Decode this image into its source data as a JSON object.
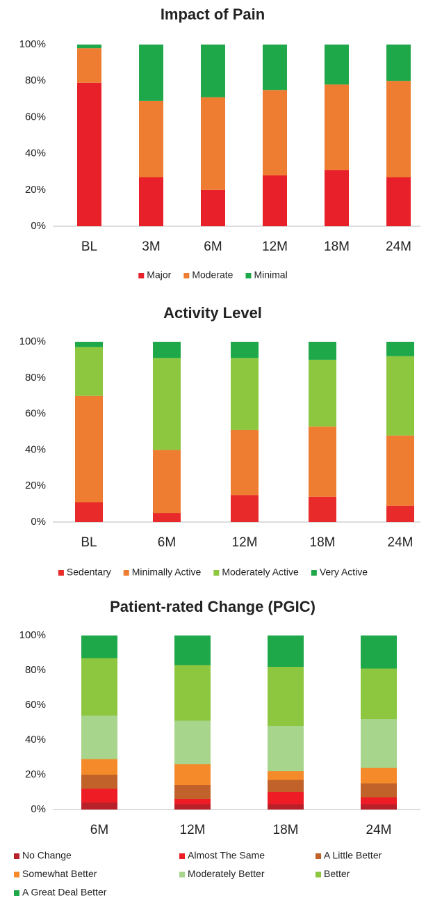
{
  "chart_data": [
    {
      "type": "bar",
      "stacked": true,
      "title": "Impact of Pain",
      "categories": [
        "BL",
        "3M",
        "6M",
        "12M",
        "18M",
        "24M"
      ],
      "series": [
        {
          "name": "Major",
          "color": "#e8202a",
          "values": [
            79,
            27,
            20,
            28,
            31,
            27
          ]
        },
        {
          "name": "Moderate",
          "color": "#ee7d31",
          "values": [
            19,
            42,
            51,
            47,
            47,
            53
          ]
        },
        {
          "name": "Minimal",
          "color": "#1ea84a",
          "values": [
            2,
            31,
            29,
            25,
            22,
            20
          ]
        }
      ],
      "ylim": [
        0,
        100
      ],
      "yticks": [
        {
          "value": 0,
          "label": "0%"
        },
        {
          "value": 20,
          "label": "20%"
        },
        {
          "value": 40,
          "label": "40%"
        },
        {
          "value": 60,
          "label": "60%"
        },
        {
          "value": 80,
          "label": "80%"
        },
        {
          "value": 100,
          "label": "100%"
        }
      ],
      "legend": "bottom"
    },
    {
      "type": "bar",
      "stacked": true,
      "title": "Activity Level",
      "categories": [
        "BL",
        "6M",
        "12M",
        "18M",
        "24M"
      ],
      "series": [
        {
          "name": "Sedentary",
          "color": "#e82a2a",
          "values": [
            11,
            5,
            15,
            14,
            9
          ]
        },
        {
          "name": "Minimally Active",
          "color": "#ee7d31",
          "values": [
            59,
            35,
            36,
            39,
            39
          ]
        },
        {
          "name": "Moderately Active",
          "color": "#8dc63f",
          "values": [
            27,
            51,
            40,
            37,
            44
          ]
        },
        {
          "name": "Very Active",
          "color": "#1ea84a",
          "values": [
            3,
            9,
            9,
            10,
            8
          ]
        }
      ],
      "ylim": [
        0,
        100
      ],
      "yticks": [
        {
          "value": 0,
          "label": "0%"
        },
        {
          "value": 20,
          "label": "20%"
        },
        {
          "value": 40,
          "label": "40%"
        },
        {
          "value": 60,
          "label": "60%"
        },
        {
          "value": 80,
          "label": "80%"
        },
        {
          "value": 100,
          "label": "100%"
        }
      ],
      "legend": "bottom"
    },
    {
      "type": "bar",
      "stacked": true,
      "title": "Patient-rated Change (PGIC)",
      "categories": [
        "6M",
        "12M",
        "18M",
        "24M"
      ],
      "series": [
        {
          "name": "No Change",
          "color": "#b8202a",
          "values": [
            4,
            3,
            3,
            3
          ]
        },
        {
          "name": "Almost The Same",
          "color": "#ee1c24",
          "values": [
            8,
            3,
            7,
            4
          ]
        },
        {
          "name": "A Little Better",
          "color": "#c0622a",
          "values": [
            8,
            8,
            7,
            8
          ]
        },
        {
          "name": "Somewhat Better",
          "color": "#f58a2a",
          "values": [
            9,
            12,
            5,
            9
          ]
        },
        {
          "name": "Moderately Better",
          "color": "#a8d58c",
          "values": [
            25,
            25,
            26,
            28
          ]
        },
        {
          "name": "Better",
          "color": "#8dc63f",
          "values": [
            33,
            32,
            34,
            29
          ]
        },
        {
          "name": "A Great Deal Better",
          "color": "#1ea84a",
          "values": [
            13,
            17,
            18,
            19
          ]
        }
      ],
      "ylim": [
        0,
        100
      ],
      "yticks": [
        {
          "value": 0,
          "label": "0%"
        },
        {
          "value": 20,
          "label": "20%"
        },
        {
          "value": 40,
          "label": "40%"
        },
        {
          "value": 60,
          "label": "60%"
        },
        {
          "value": 80,
          "label": "80%"
        },
        {
          "value": 100,
          "label": "100%"
        }
      ],
      "legend": "bottom"
    }
  ]
}
